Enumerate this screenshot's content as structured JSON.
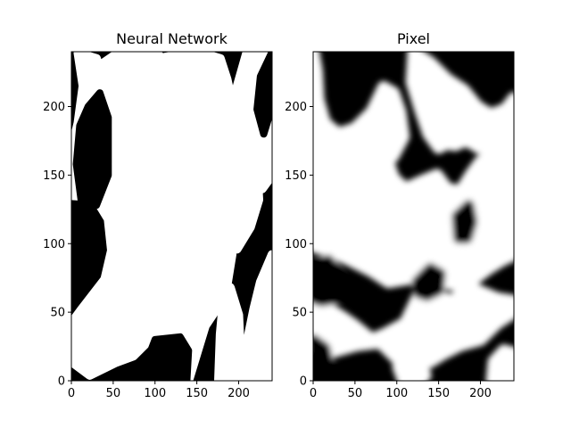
{
  "chart_data": [
    {
      "type": "heatmap",
      "title": "Neural Network",
      "colormap": "binary",
      "xlim": [
        0,
        240
      ],
      "ylim": [
        0,
        240
      ],
      "xticks": [
        "0",
        "50",
        "100",
        "150",
        "200"
      ],
      "yticks": [
        "0",
        "50",
        "100",
        "150",
        "200"
      ],
      "white_regions": [
        {
          "points": [
            [
              8,
              239
            ],
            [
              30,
              235
            ],
            [
              44,
              205
            ],
            [
              58,
              168
            ],
            [
              68,
              150
            ],
            [
              90,
              128
            ],
            [
              100,
              118
            ],
            [
              110,
              86
            ],
            [
              112,
              54
            ],
            [
              102,
              35
            ],
            [
              74,
              18
            ],
            [
              52,
              13
            ],
            [
              22,
              4
            ],
            [
              0,
              14
            ],
            [
              0,
              42
            ],
            [
              12,
              52
            ],
            [
              40,
              74
            ],
            [
              48,
              95
            ],
            [
              44,
              118
            ],
            [
              28,
              134
            ],
            [
              0,
              135
            ],
            [
              0,
              168
            ],
            [
              8,
              188
            ],
            [
              14,
              215
            ]
          ]
        },
        {
          "points": [
            [
              58,
              240
            ],
            [
              100,
              240
            ],
            [
              135,
              220
            ],
            [
              158,
              190
            ],
            [
              172,
              175
            ],
            [
              175,
              155
            ],
            [
              185,
              118
            ],
            [
              192,
              92
            ],
            [
              184,
              62
            ],
            [
              160,
              40
            ],
            [
              140,
              0
            ],
            [
              110,
              0
            ],
            [
              102,
              30
            ],
            [
              112,
              56
            ],
            [
              110,
              96
            ],
            [
              96,
              126
            ],
            [
              74,
              148
            ],
            [
              58,
              172
            ],
            [
              44,
              206
            ],
            [
              34,
              230
            ]
          ]
        },
        {
          "points": [
            [
              150,
              240
            ],
            [
              178,
              235
            ],
            [
              186,
              220
            ],
            [
              196,
              192
            ],
            [
              212,
              180
            ],
            [
              222,
              156
            ],
            [
              224,
              132
            ],
            [
              214,
              112
            ],
            [
              198,
              96
            ],
            [
              186,
              98
            ],
            [
              176,
              122
            ],
            [
              172,
              150
            ],
            [
              168,
              170
            ],
            [
              160,
              190
            ],
            [
              140,
              214
            ],
            [
              112,
              236
            ]
          ]
        },
        {
          "points": [
            [
              210,
              240
            ],
            [
              240,
              240
            ],
            [
              240,
              150
            ],
            [
              228,
              140
            ],
            [
              222,
              155
            ],
            [
              214,
              180
            ],
            [
              202,
              190
            ],
            [
              196,
              210
            ]
          ]
        },
        {
          "points": [
            [
              240,
              92
            ],
            [
              226,
              72
            ],
            [
              218,
              52
            ],
            [
              210,
              28
            ],
            [
              198,
              0
            ],
            [
              240,
              0
            ]
          ]
        },
        {
          "points": [
            [
              176,
              0
            ],
            [
              196,
              0
            ],
            [
              202,
              20
            ],
            [
              200,
              48
            ],
            [
              190,
              68
            ],
            [
              182,
              60
            ],
            [
              178,
              34
            ]
          ]
        }
      ],
      "black_regions": [
        {
          "points": [
            [
              20,
              200
            ],
            [
              34,
              210
            ],
            [
              44,
              192
            ],
            [
              44,
              150
            ],
            [
              30,
              128
            ],
            [
              12,
              130
            ],
            [
              6,
              158
            ],
            [
              10,
              186
            ]
          ]
        },
        {
          "points": [
            [
              100,
              30
            ],
            [
              130,
              32
            ],
            [
              140,
              22
            ],
            [
              138,
              0
            ],
            [
              100,
              0
            ],
            [
              90,
              14
            ]
          ]
        },
        {
          "points": [
            [
              240,
              240
            ],
            [
              240,
              200
            ],
            [
              230,
              180
            ],
            [
              222,
              198
            ],
            [
              226,
              222
            ]
          ]
        }
      ]
    },
    {
      "type": "heatmap",
      "title": "Pixel",
      "colormap": "binary",
      "xlim": [
        0,
        240
      ],
      "ylim": [
        0,
        240
      ],
      "xticks": [
        "0",
        "50",
        "100",
        "150",
        "200"
      ],
      "yticks": [
        "0",
        "50",
        "100",
        "150",
        "200"
      ],
      "white_regions": [
        {
          "points": [
            [
              0,
              162
            ],
            [
              20,
              168
            ],
            [
              48,
              176
            ],
            [
              70,
              182
            ],
            [
              86,
              166
            ],
            [
              96,
              148
            ],
            [
              110,
              140
            ],
            [
              132,
              146
            ],
            [
              148,
              150
            ],
            [
              160,
              140
            ],
            [
              176,
              138
            ],
            [
              188,
              150
            ],
            [
              200,
              160
            ],
            [
              216,
              166
            ],
            [
              232,
              170
            ],
            [
              240,
              176
            ],
            [
              240,
              92
            ],
            [
              226,
              88
            ],
            [
              210,
              82
            ],
            [
              188,
              72
            ],
            [
              170,
              70
            ],
            [
              150,
              72
            ],
            [
              132,
              76
            ],
            [
              110,
              74
            ],
            [
              90,
              72
            ],
            [
              70,
              80
            ],
            [
              44,
              88
            ],
            [
              22,
              94
            ],
            [
              0,
              98
            ]
          ]
        },
        {
          "points": [
            [
              0,
              240
            ],
            [
              4,
              226
            ],
            [
              6,
              205
            ],
            [
              14,
              188
            ],
            [
              30,
              180
            ],
            [
              50,
              184
            ],
            [
              70,
              196
            ],
            [
              84,
              214
            ],
            [
              96,
              210
            ],
            [
              104,
              196
            ],
            [
              108,
              178
            ],
            [
              96,
              164
            ],
            [
              86,
              158
            ],
            [
              72,
              160
            ],
            [
              56,
              166
            ],
            [
              36,
              166
            ],
            [
              16,
              160
            ],
            [
              0,
              158
            ]
          ]
        },
        {
          "points": [
            [
              120,
              240
            ],
            [
              140,
              232
            ],
            [
              160,
              220
            ],
            [
              180,
              212
            ],
            [
              196,
              200
            ],
            [
              212,
              194
            ],
            [
              230,
              198
            ],
            [
              240,
              206
            ],
            [
              240,
              176
            ],
            [
              218,
              170
            ],
            [
              198,
              170
            ],
            [
              188,
              174
            ],
            [
              168,
              176
            ],
            [
              150,
              170
            ],
            [
              138,
              180
            ],
            [
              128,
              198
            ],
            [
              118,
              218
            ]
          ]
        },
        {
          "points": [
            [
              0,
              58
            ],
            [
              20,
              52
            ],
            [
              36,
              46
            ],
            [
              50,
              40
            ],
            [
              70,
              30
            ],
            [
              86,
              34
            ],
            [
              110,
              42
            ],
            [
              124,
              60
            ],
            [
              132,
              70
            ],
            [
              150,
              62
            ],
            [
              166,
              58
            ],
            [
              180,
              66
            ],
            [
              196,
              66
            ],
            [
              220,
              60
            ],
            [
              240,
              58
            ],
            [
              240,
              50
            ],
            [
              220,
              42
            ],
            [
              200,
              30
            ],
            [
              176,
              26
            ],
            [
              156,
              20
            ],
            [
              140,
              14
            ],
            [
              120,
              10
            ],
            [
              100,
              16
            ],
            [
              80,
              28
            ],
            [
              52,
              26
            ],
            [
              28,
              22
            ],
            [
              8,
              18
            ],
            [
              0,
              22
            ]
          ]
        },
        {
          "points": [
            [
              108,
              20
            ],
            [
              126,
              18
            ],
            [
              134,
              4
            ],
            [
              128,
              0
            ],
            [
              108,
              0
            ],
            [
              102,
              10
            ]
          ]
        },
        {
          "points": [
            [
              214,
              0
            ],
            [
              240,
              0
            ],
            [
              240,
              20
            ],
            [
              228,
              22
            ],
            [
              216,
              14
            ]
          ]
        },
        {
          "points": [
            [
              144,
              188
            ],
            [
              170,
              196
            ],
            [
              186,
              194
            ],
            [
              190,
              178
            ],
            [
              170,
              172
            ],
            [
              150,
              174
            ]
          ]
        }
      ],
      "black_regions": [
        {
          "points": [
            [
              0,
              30
            ],
            [
              14,
              24
            ],
            [
              20,
              8
            ],
            [
              14,
              0
            ],
            [
              0,
              0
            ]
          ]
        },
        {
          "points": [
            [
              172,
              120
            ],
            [
              186,
              128
            ],
            [
              190,
              116
            ],
            [
              184,
              104
            ],
            [
              174,
              104
            ]
          ]
        },
        {
          "points": [
            [
              124,
              72
            ],
            [
              140,
              82
            ],
            [
              152,
              78
            ],
            [
              150,
              66
            ],
            [
              136,
              62
            ],
            [
              126,
              64
            ]
          ]
        },
        {
          "points": [
            [
              0,
              84
            ],
            [
              18,
              88
            ],
            [
              30,
              78
            ],
            [
              28,
              60
            ],
            [
              10,
              58
            ],
            [
              0,
              60
            ]
          ]
        }
      ]
    }
  ]
}
